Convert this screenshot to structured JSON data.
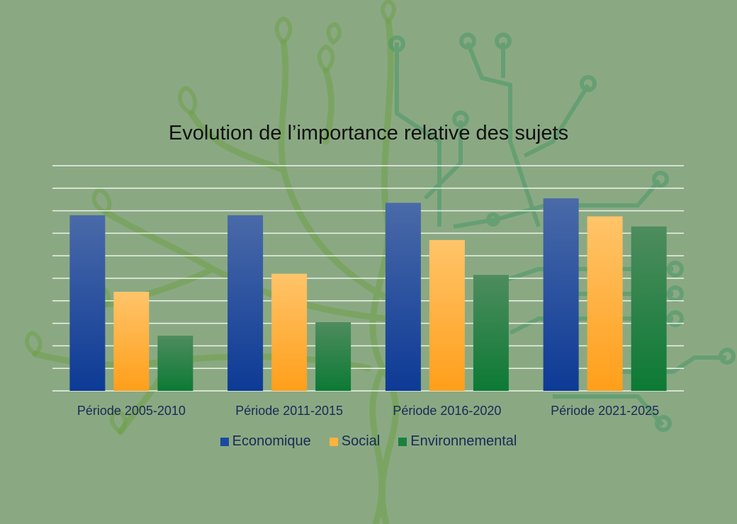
{
  "colors": {
    "background": "#8aa983",
    "decoration": "#6fa04a",
    "gridline": "#ffffff",
    "economique_top": "#4a6aa8",
    "economique_bottom": "#0d3a96",
    "social_top": "#ffc46a",
    "social_bottom": "#ff9f1a",
    "environnemental_top": "#4e8c5e",
    "environnemental_bottom": "#0c7a35"
  },
  "chart_data": {
    "type": "bar",
    "title": "Evolution de l’importance relative des sujets",
    "categories": [
      "Période 2005-2010",
      "Période 2011-2015",
      "Période 2016-2020",
      "Période 2021-2025"
    ],
    "series": [
      {
        "name": "Economique",
        "values": [
          7.8,
          7.8,
          8.35,
          8.55
        ]
      },
      {
        "name": "Social",
        "values": [
          4.4,
          5.2,
          6.7,
          7.75
        ]
      },
      {
        "name": "Environnemental",
        "values": [
          2.45,
          3.05,
          5.15,
          7.3
        ]
      }
    ],
    "ylim": [
      0,
      10
    ],
    "grid": true,
    "legend_position": "bottom"
  }
}
